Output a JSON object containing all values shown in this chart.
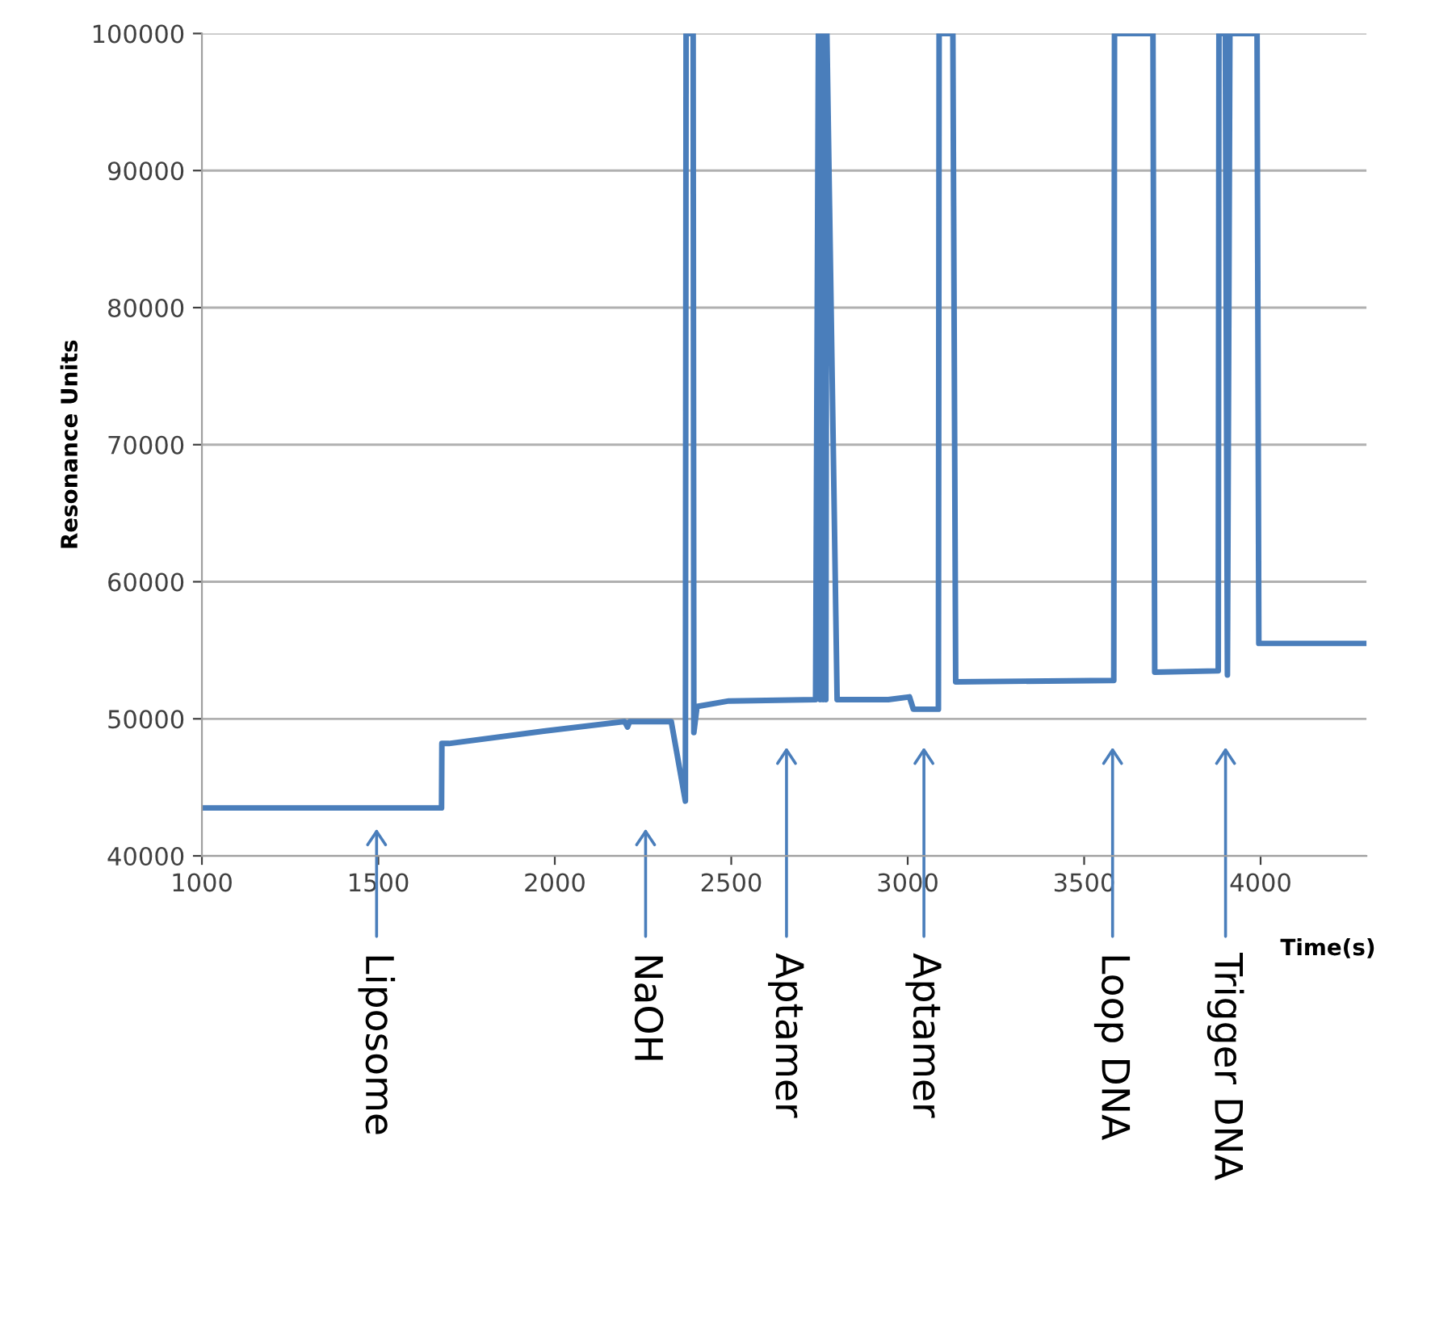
{
  "chart_data": {
    "type": "line",
    "xlabel": "Time(s)",
    "ylabel": "Resonance Units",
    "series": [
      {
        "color": "#4a7ebb",
        "x": [
          1000,
          1679,
          1680,
          1700,
          1969,
          2198,
          2206,
          2212,
          2330,
          2370,
          2372,
          2392,
          2394,
          2403,
          2493,
          2739,
          2747,
          2752,
          2756,
          2760,
          2764,
          2768,
          2771,
          2800,
          2945,
          3005,
          3016,
          3087,
          3089,
          3128,
          3136,
          3577,
          3584,
          3586,
          3695,
          3700,
          3880,
          3882,
          3900,
          3906,
          3913,
          3927,
          3990,
          3995,
          4300
        ],
        "values": [
          43500,
          43500,
          48200,
          48200,
          49100,
          49800,
          49400,
          49800,
          49800,
          44000,
          100000,
          100000,
          49000,
          50900,
          51300,
          51400,
          100000,
          51400,
          100000,
          51400,
          100000,
          51400,
          100000,
          51400,
          51400,
          51600,
          50700,
          50700,
          100000,
          100000,
          52700,
          52800,
          52800,
          100000,
          100000,
          53400,
          53500,
          100000,
          100000,
          53200,
          100000,
          100000,
          100000,
          55500,
          55500
        ]
      }
    ],
    "xlim": [
      1000,
      4300
    ],
    "xticks": [
      1000,
      1500,
      2000,
      2500,
      3000,
      3500,
      4000
    ],
    "ylim": [
      40000,
      100000
    ],
    "yticks": [
      40000,
      50000,
      60000,
      70000,
      80000,
      90000,
      100000
    ],
    "grid": "y",
    "legend": false,
    "marker": "none",
    "line_style": "solid",
    "annotations": [
      "Liposome",
      "NaOH",
      "Aptamer",
      "Aptamer",
      "Loop DNA",
      "Trigger DNA"
    ]
  }
}
